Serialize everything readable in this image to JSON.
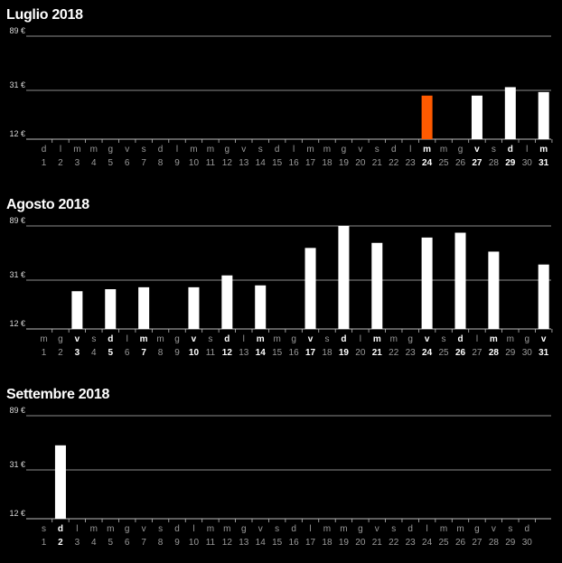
{
  "colors": {
    "bar": "#ffffff",
    "highlight": "#ff5a00",
    "grid": "#bdbdbd",
    "background": "#000000"
  },
  "chart_data": [
    {
      "type": "bar",
      "title": "Luglio 2018",
      "yticks": [
        "89 €",
        "31 €",
        "12 €"
      ],
      "ylim": [
        12,
        89
      ],
      "scale": "log",
      "day_letters": [
        "d",
        "l",
        "m",
        "m",
        "g",
        "v",
        "s",
        "d",
        "l",
        "m",
        "m",
        "g",
        "v",
        "s",
        "d",
        "l",
        "m",
        "m",
        "g",
        "v",
        "s",
        "d",
        "l",
        "m",
        "m",
        "g",
        "v",
        "s",
        "d",
        "l",
        "m"
      ],
      "days": [
        "1",
        "2",
        "3",
        "4",
        "5",
        "6",
        "7",
        "8",
        "9",
        "10",
        "11",
        "12",
        "13",
        "14",
        "15",
        "16",
        "17",
        "18",
        "19",
        "20",
        "21",
        "22",
        "23",
        "24",
        "25",
        "26",
        "27",
        "28",
        "29",
        "30",
        "31"
      ],
      "bold_days": [
        24,
        27,
        29,
        31
      ],
      "bars": [
        {
          "day": 24,
          "value": 28,
          "highlight": true
        },
        {
          "day": 27,
          "value": 28
        },
        {
          "day": 29,
          "value": 33
        },
        {
          "day": 31,
          "value": 30
        }
      ]
    },
    {
      "type": "bar",
      "title": "Agosto 2018",
      "yticks": [
        "89 €",
        "31 €",
        "12 €"
      ],
      "ylim": [
        12,
        89
      ],
      "scale": "log",
      "day_letters": [
        "m",
        "g",
        "v",
        "s",
        "d",
        "l",
        "m",
        "m",
        "g",
        "v",
        "s",
        "d",
        "l",
        "m",
        "m",
        "g",
        "v",
        "s",
        "d",
        "l",
        "m",
        "m",
        "g",
        "v",
        "s",
        "d",
        "l",
        "m",
        "m",
        "g",
        "v"
      ],
      "days": [
        "1",
        "2",
        "3",
        "4",
        "5",
        "6",
        "7",
        "8",
        "9",
        "10",
        "11",
        "12",
        "13",
        "14",
        "15",
        "16",
        "17",
        "18",
        "19",
        "20",
        "21",
        "22",
        "23",
        "24",
        "25",
        "26",
        "27",
        "28",
        "29",
        "30",
        "31"
      ],
      "bold_days": [
        3,
        5,
        7,
        10,
        12,
        14,
        17,
        19,
        21,
        24,
        26,
        28,
        31
      ],
      "bars": [
        {
          "day": 3,
          "value": 25
        },
        {
          "day": 5,
          "value": 26
        },
        {
          "day": 7,
          "value": 27
        },
        {
          "day": 10,
          "value": 27
        },
        {
          "day": 12,
          "value": 34
        },
        {
          "day": 14,
          "value": 28
        },
        {
          "day": 17,
          "value": 58
        },
        {
          "day": 19,
          "value": 89
        },
        {
          "day": 21,
          "value": 64
        },
        {
          "day": 24,
          "value": 71
        },
        {
          "day": 26,
          "value": 78
        },
        {
          "day": 28,
          "value": 54
        },
        {
          "day": 31,
          "value": 42
        }
      ]
    },
    {
      "type": "bar",
      "title": "Settembre 2018",
      "yticks": [
        "89 €",
        "31 €",
        "12 €"
      ],
      "ylim": [
        12,
        89
      ],
      "scale": "log",
      "day_letters": [
        "s",
        "d",
        "l",
        "m",
        "m",
        "g",
        "v",
        "s",
        "d",
        "l",
        "m",
        "m",
        "g",
        "v",
        "s",
        "d",
        "l",
        "m",
        "m",
        "g",
        "v",
        "s",
        "d",
        "l",
        "m",
        "m",
        "g",
        "v",
        "s",
        "d"
      ],
      "days": [
        "1",
        "2",
        "3",
        "4",
        "5",
        "6",
        "7",
        "8",
        "9",
        "10",
        "11",
        "12",
        "13",
        "14",
        "15",
        "16",
        "17",
        "18",
        "19",
        "20",
        "21",
        "22",
        "23",
        "24",
        "25",
        "26",
        "27",
        "28",
        "29",
        "30"
      ],
      "bold_days": [
        2
      ],
      "bars": [
        {
          "day": 2,
          "value": 50
        }
      ]
    }
  ]
}
